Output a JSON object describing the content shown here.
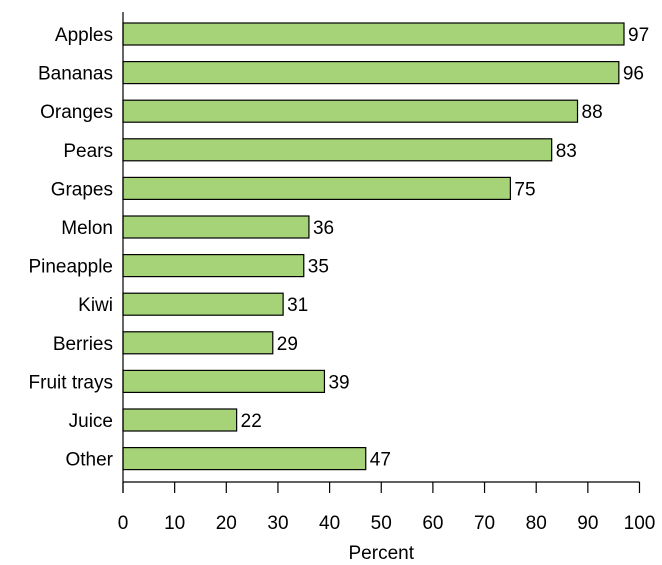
{
  "chart_data": {
    "type": "bar",
    "orientation": "horizontal",
    "categories": [
      "Apples",
      "Bananas",
      "Oranges",
      "Pears",
      "Grapes",
      "Melon",
      "Pineapple",
      "Kiwi",
      "Berries",
      "Fruit trays",
      "Juice",
      "Other"
    ],
    "values": [
      97,
      96,
      88,
      83,
      75,
      36,
      35,
      31,
      29,
      39,
      22,
      47
    ],
    "data_labels": [
      "97",
      "96",
      "88",
      "83",
      "75",
      "36",
      "35",
      "31",
      "29",
      "39",
      "22",
      "47"
    ],
    "xlabel": "Percent",
    "xlim": [
      0,
      100
    ],
    "xticks": [
      "0",
      "10",
      "20",
      "30",
      "40",
      "50",
      "60",
      "70",
      "80",
      "90",
      "100"
    ],
    "grid": false,
    "bar_color": "#a6d378",
    "bar_edge_color": "#000000"
  }
}
